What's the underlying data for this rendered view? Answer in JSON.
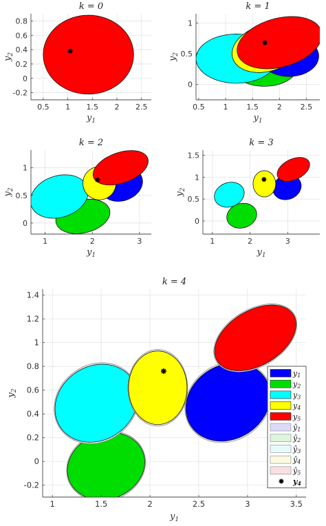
{
  "chart_data": [
    {
      "type": "scatter",
      "title": "k = 0",
      "xlabel": "y1",
      "ylabel": "y2",
      "xlim": [
        0.25,
        2.7
      ],
      "ylim": [
        -0.3,
        0.9
      ],
      "xticks": [
        0.5,
        1,
        1.5,
        2,
        2.5
      ],
      "yticks": [
        -0.2,
        0,
        0.2,
        0.4,
        0.6,
        0.8
      ],
      "grid": true,
      "ellipses": [
        {
          "name": "y5",
          "color": "#ff0000",
          "cx": 1.42,
          "cy": 0.33,
          "rx": 0.92,
          "ry": 0.55,
          "angle": 0
        }
      ],
      "marker": {
        "x": 1.05,
        "y": 0.38
      }
    },
    {
      "type": "scatter",
      "title": "k = 1",
      "xlabel": "y1",
      "ylabel": "y2",
      "xlim": [
        0.45,
        2.75
      ],
      "ylim": [
        -0.25,
        1.15
      ],
      "xticks": [
        0.5,
        1,
        1.5,
        2,
        2.5
      ],
      "yticks": [
        0,
        0.5,
        1
      ],
      "grid": true,
      "ellipses": [
        {
          "name": "y2",
          "color": "#00dd00",
          "cx": 1.72,
          "cy": 0.3,
          "rx": 0.62,
          "ry": 0.33,
          "angle": 0
        },
        {
          "name": "y1",
          "color": "#0000ff",
          "cx": 2.18,
          "cy": 0.46,
          "rx": 0.55,
          "ry": 0.33,
          "angle": 0
        },
        {
          "name": "y3",
          "color": "#00ffff",
          "cx": 1.2,
          "cy": 0.42,
          "rx": 0.75,
          "ry": 0.4,
          "angle": 0
        },
        {
          "name": "y4",
          "color": "#ffff00",
          "cx": 1.76,
          "cy": 0.59,
          "rx": 0.65,
          "ry": 0.38,
          "angle": 12
        },
        {
          "name": "y5",
          "color": "#ff0000",
          "cx": 2.0,
          "cy": 0.68,
          "rx": 0.8,
          "ry": 0.4,
          "angle": 12
        }
      ],
      "marker": {
        "x": 1.73,
        "y": 0.68
      }
    },
    {
      "type": "scatter",
      "title": "k = 2",
      "xlabel": "y1",
      "ylabel": "y2",
      "xlim": [
        0.7,
        3.25
      ],
      "ylim": [
        -0.2,
        1.32
      ],
      "xticks": [
        1,
        2,
        3
      ],
      "yticks": [
        0,
        0.5,
        1
      ],
      "grid": true,
      "ellipses": [
        {
          "name": "y1",
          "color": "#0000ff",
          "cx": 2.62,
          "cy": 0.7,
          "rx": 0.45,
          "ry": 0.3,
          "angle": 12
        },
        {
          "name": "y2",
          "color": "#00dd00",
          "cx": 1.8,
          "cy": 0.12,
          "rx": 0.58,
          "ry": 0.3,
          "angle": 10
        },
        {
          "name": "y3",
          "color": "#00ffff",
          "cx": 1.3,
          "cy": 0.48,
          "rx": 0.62,
          "ry": 0.38,
          "angle": 12
        },
        {
          "name": "y4",
          "color": "#ffff00",
          "cx": 2.15,
          "cy": 0.72,
          "rx": 0.35,
          "ry": 0.3,
          "angle": 0
        },
        {
          "name": "y5",
          "color": "#ff0000",
          "cx": 2.6,
          "cy": 1.0,
          "rx": 0.6,
          "ry": 0.28,
          "angle": 15
        }
      ],
      "marker": {
        "x": 2.11,
        "y": 0.78
      }
    },
    {
      "type": "scatter",
      "title": "k = 3",
      "xlabel": "y1",
      "ylabel": "y2",
      "xlim": [
        0.75,
        3.85
      ],
      "ylim": [
        -0.3,
        1.62
      ],
      "xticks": [
        1,
        2,
        3
      ],
      "yticks": [
        0,
        0.5,
        1,
        1.5
      ],
      "grid": true,
      "ellipses": [
        {
          "name": "y1",
          "color": "#0000ff",
          "cx": 2.98,
          "cy": 0.77,
          "rx": 0.38,
          "ry": 0.28,
          "angle": 12
        },
        {
          "name": "y2",
          "color": "#00dd00",
          "cx": 1.78,
          "cy": 0.12,
          "rx": 0.4,
          "ry": 0.28,
          "angle": 10
        },
        {
          "name": "y3",
          "color": "#00ffff",
          "cx": 1.45,
          "cy": 0.6,
          "rx": 0.4,
          "ry": 0.28,
          "angle": 12
        },
        {
          "name": "y4",
          "color": "#ffff00",
          "cx": 2.38,
          "cy": 0.85,
          "rx": 0.3,
          "ry": 0.3,
          "angle": 0
        },
        {
          "name": "y5",
          "color": "#ff0000",
          "cx": 3.15,
          "cy": 1.18,
          "rx": 0.45,
          "ry": 0.24,
          "angle": 20
        }
      ],
      "marker": {
        "x": 2.37,
        "y": 0.95
      }
    },
    {
      "type": "scatter",
      "title": "k = 4",
      "xlabel": "y1",
      "ylabel": "y2",
      "xlim": [
        0.9,
        3.6
      ],
      "ylim": [
        -0.3,
        1.45
      ],
      "xticks": [
        1,
        1.5,
        2,
        2.5,
        3,
        3.5
      ],
      "yticks": [
        -0.2,
        0,
        0.2,
        0.4,
        0.6,
        0.8,
        1,
        1.2,
        1.4
      ],
      "grid": true,
      "legend_position": "right",
      "legend": [
        {
          "label": "y1",
          "color": "#0000ff",
          "kind": "filled"
        },
        {
          "label": "y2",
          "color": "#00dd00",
          "kind": "filled"
        },
        {
          "label": "y3",
          "color": "#00ffff",
          "kind": "filled"
        },
        {
          "label": "y4",
          "color": "#ffff00",
          "kind": "filled"
        },
        {
          "label": "y5",
          "color": "#ff0000",
          "kind": "filled"
        },
        {
          "label": "ŷ1",
          "color": "#dcdcf8",
          "kind": "pale"
        },
        {
          "label": "ŷ2",
          "color": "#dcf5dc",
          "kind": "pale"
        },
        {
          "label": "ŷ3",
          "color": "#e6fafa",
          "kind": "pale"
        },
        {
          "label": "ŷ4",
          "color": "#fafae0",
          "kind": "pale"
        },
        {
          "label": "ŷ5",
          "color": "#f8e0e0",
          "kind": "pale"
        },
        {
          "label": "y4",
          "color": "#000000",
          "kind": "marker"
        }
      ],
      "ellipses": [
        {
          "name": "y1",
          "color": "#0000ff",
          "cx": 2.8,
          "cy": 0.5,
          "rx": 0.44,
          "ry": 0.32,
          "angle": 15
        },
        {
          "name": "y2",
          "color": "#00dd00",
          "cx": 1.55,
          "cy": -0.04,
          "rx": 0.4,
          "ry": 0.28,
          "angle": 10
        },
        {
          "name": "y3",
          "color": "#00ffff",
          "cx": 1.45,
          "cy": 0.49,
          "rx": 0.43,
          "ry": 0.32,
          "angle": 15
        },
        {
          "name": "y4",
          "color": "#ffff00",
          "cx": 2.08,
          "cy": 0.62,
          "rx": 0.3,
          "ry": 0.31,
          "angle": 0
        },
        {
          "name": "y5",
          "color": "#ff0000",
          "cx": 3.08,
          "cy": 1.04,
          "rx": 0.44,
          "ry": 0.24,
          "angle": 22
        }
      ],
      "marker": {
        "x": 2.14,
        "y": 0.76
      }
    }
  ]
}
